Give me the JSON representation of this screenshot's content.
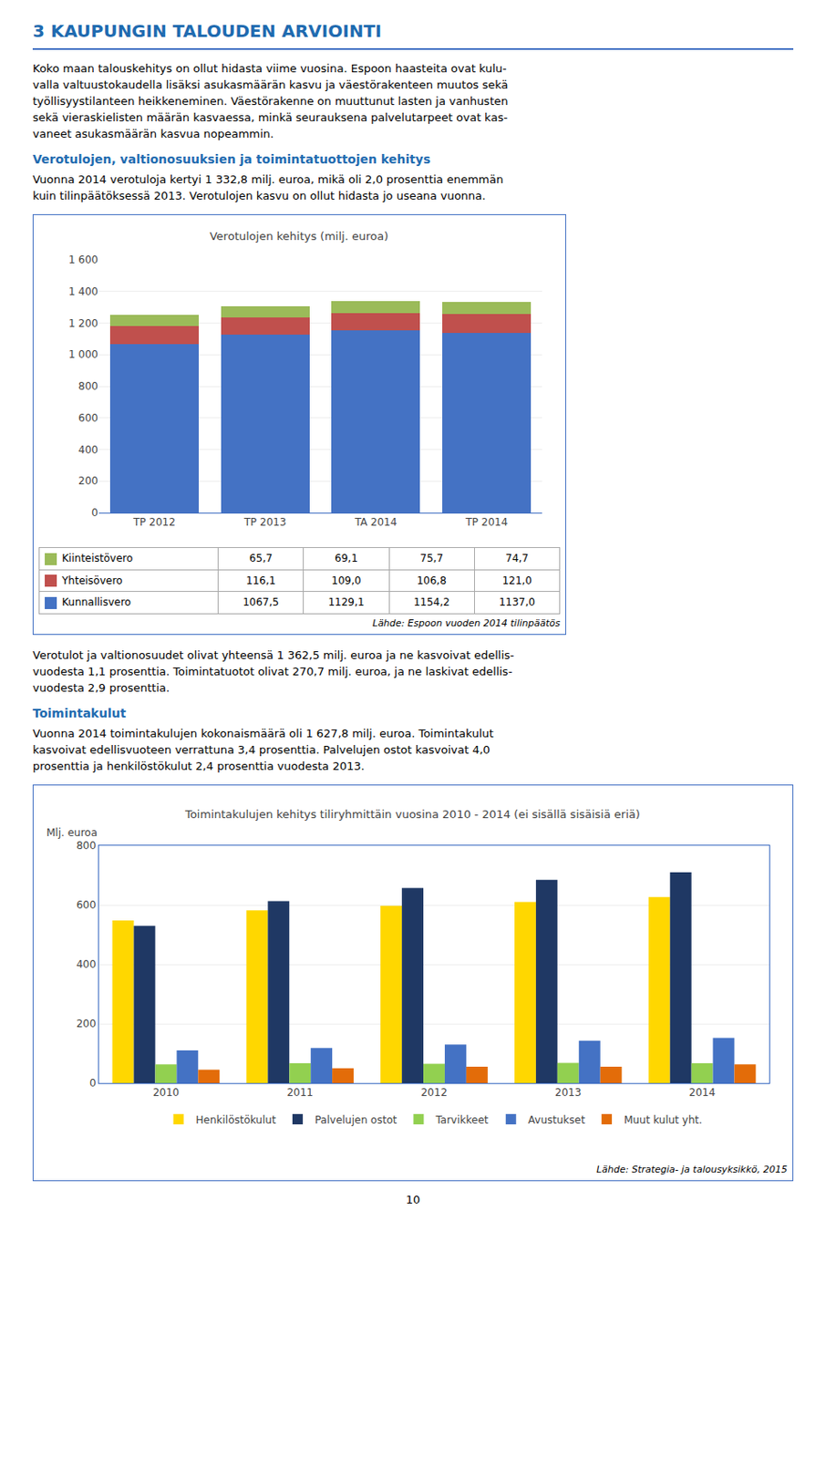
{
  "title": "3 KAUPUNGIN TALOUDEN ARVIOINTI",
  "subtitles": [
    "Verotulojen, valtionosuuksien ja toimintatuottojen kehitys",
    "Toimintakulut"
  ],
  "paragraphs": [
    [
      "Koko maan talouskehitys on ollut hidasta viime vuosina. Espoon haasteita ovat kulu-",
      "valla valtuustokaudella lisäksi asukasmäärän kasvu ja väestörakenteen muutos sekä",
      "työllisyystilanteen heikkeneminen. Väestörakenne on muuttunut lasten ja vanhusten",
      "sekä vieraskielisten määrän kasvaessa, minkä seurauksena palvelutarpeet ovat kas-",
      "vaneet asukasmäärän kasvua nopeammin."
    ],
    [
      "Vuonna 2014 verotuloja kertyi 1 332,8 milj. euroa, mikä oli 2,0 prosenttia enemmän",
      "kuin tilinpäätöksessä 2013. Verotulojen kasvu on ollut hidasta jo useana vuonna."
    ],
    [
      "Verotulot ja valtionosuudet olivat yhteensä 1 362,5 milj. euroa ja ne kasvoivat edellis-",
      "vuodesta 1,1 prosenttia. Toimintatuotot olivat 270,7 milj. euroa, ja ne laskivat edellis-",
      "vuodesta 2,9 prosenttia."
    ],
    [
      "Vuonna 2014 toimintakulujen kokonaismäärä oli 1 627,8 milj. euroa. Toimintakulut",
      "kasvoivat edellisvuoteen verrattuna 3,4 prosenttia. Palvelujen ostot kasvoivat 4,0",
      "prosenttia ja henkilöstökulut 2,4 prosenttia vuodesta 2013."
    ]
  ],
  "page_number": "10",
  "chart_data": [
    {
      "type": "bar",
      "stacked": true,
      "title": "Verotulojen kehitys (milj. euroa)",
      "categories": [
        "TP 2012",
        "TP 2013",
        "TA 2014",
        "TP 2014"
      ],
      "series": [
        {
          "name": "Kunnallisvero",
          "color": "#4472C4",
          "values": [
            1067.5,
            1129.1,
            1154.2,
            1137.0
          ],
          "value_labels": [
            "1067,5",
            "1129,1",
            "1154,2",
            "1137,0"
          ]
        },
        {
          "name": "Yhteisövero",
          "color": "#C0504D",
          "values": [
            116.1,
            109.0,
            106.8,
            121.0
          ],
          "value_labels": [
            "116,1",
            "109,0",
            "106,8",
            "121,0"
          ]
        },
        {
          "name": "Kiinteistövero",
          "color": "#9BBB59",
          "values": [
            65.7,
            69.1,
            75.7,
            74.7
          ],
          "value_labels": [
            "65,7",
            "69,1",
            "75,7",
            "74,7"
          ]
        }
      ],
      "ylim": [
        0,
        1600
      ],
      "yticks": [
        0,
        200,
        400,
        600,
        800,
        {
          "value": 1000,
          "label": "1 000"
        },
        {
          "value": 1200,
          "label": "1 200"
        },
        {
          "value": 1400,
          "label": "1 400"
        },
        {
          "value": 1600,
          "label": "1 600"
        }
      ],
      "grid": true,
      "annotations": [
        "Lähde: Espoon vuoden 2014 tilinpäätös"
      ]
    },
    {
      "type": "bar",
      "title": "Toimintakulujen kehitys tiliryhmittäin vuosina 2010 - 2014 (ei sisällä sisäisiä eriä)",
      "ylabel": "Mlj. euroa",
      "categories": [
        "2010",
        "2011",
        "2012",
        "2013",
        "2014"
      ],
      "series": [
        {
          "name": "Henkilöstökulut",
          "color": "#FFD700",
          "values": [
            548,
            582,
            597,
            610,
            627
          ]
        },
        {
          "name": "Palvelujen ostot",
          "color": "#1F3864",
          "values": [
            530,
            613,
            657,
            685,
            710
          ]
        },
        {
          "name": "Tarvikkeet",
          "color": "#92D050",
          "values": [
            63,
            67,
            65,
            68,
            67
          ]
        },
        {
          "name": "Avustukset",
          "color": "#4472C4",
          "values": [
            110,
            118,
            130,
            143,
            152
          ]
        },
        {
          "name": "Muut kulut yht.",
          "color": "#E36C09",
          "values": [
            45,
            50,
            55,
            55,
            63
          ]
        }
      ],
      "ylim": [
        0,
        800
      ],
      "yticks": [
        0,
        200,
        400,
        600,
        800
      ],
      "grid": true,
      "legend": "bottom",
      "annotations": [
        "Lähde: Strategia- ja talousyksikkö, 2015"
      ]
    }
  ]
}
